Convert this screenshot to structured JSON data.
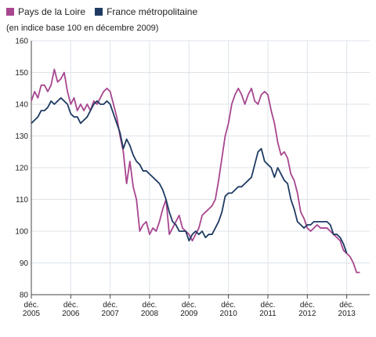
{
  "chart_data": {
    "type": "line",
    "subtitle": "(en indice base 100 en décembre 2009)",
    "ylim": [
      80,
      160
    ],
    "yticks": [
      80,
      90,
      100,
      110,
      120,
      130,
      140,
      150,
      160
    ],
    "grid": true,
    "legend_position": "top-left",
    "xticks": [
      {
        "month": 0,
        "line1": "déc.",
        "line2": "2005"
      },
      {
        "month": 12,
        "line1": "déc.",
        "line2": "2006"
      },
      {
        "month": 24,
        "line1": "déc.",
        "line2": "2007"
      },
      {
        "month": 36,
        "line1": "déc.",
        "line2": "2008"
      },
      {
        "month": 48,
        "line1": "déc.",
        "line2": "2009"
      },
      {
        "month": 60,
        "line1": "déc.",
        "line2": "2010"
      },
      {
        "month": 72,
        "line1": "déc.",
        "line2": "2011"
      },
      {
        "month": 84,
        "line1": "déc.",
        "line2": "2012"
      },
      {
        "month": 96,
        "line1": "déc.",
        "line2": "2013"
      }
    ],
    "xlim": [
      0,
      103
    ],
    "series": [
      {
        "name": "Pays de la Loire",
        "color": "#a8468f",
        "points": [
          [
            0,
            141
          ],
          [
            1,
            144
          ],
          [
            2,
            142
          ],
          [
            3,
            146
          ],
          [
            4,
            146
          ],
          [
            5,
            144
          ],
          [
            6,
            146
          ],
          [
            7,
            151
          ],
          [
            8,
            147
          ],
          [
            9,
            148
          ],
          [
            10,
            150
          ],
          [
            11,
            144
          ],
          [
            12,
            140
          ],
          [
            13,
            142
          ],
          [
            14,
            138
          ],
          [
            15,
            140
          ],
          [
            16,
            138
          ],
          [
            17,
            140
          ],
          [
            18,
            138
          ],
          [
            19,
            141
          ],
          [
            20,
            140
          ],
          [
            21,
            142
          ],
          [
            22,
            144
          ],
          [
            23,
            145
          ],
          [
            24,
            144
          ],
          [
            25,
            140
          ],
          [
            26,
            136
          ],
          [
            27,
            130
          ],
          [
            28,
            125
          ],
          [
            29,
            115
          ],
          [
            30,
            122
          ],
          [
            31,
            114
          ],
          [
            32,
            110
          ],
          [
            33,
            100
          ],
          [
            34,
            102
          ],
          [
            35,
            103
          ],
          [
            36,
            99
          ],
          [
            37,
            101
          ],
          [
            38,
            100
          ],
          [
            39,
            103
          ],
          [
            40,
            107
          ],
          [
            41,
            110
          ],
          [
            42,
            99
          ],
          [
            43,
            101
          ],
          [
            44,
            103
          ],
          [
            45,
            105
          ],
          [
            46,
            101
          ],
          [
            47,
            100
          ],
          [
            48,
            99
          ],
          [
            49,
            97
          ],
          [
            50,
            99
          ],
          [
            51,
            101
          ],
          [
            52,
            105
          ],
          [
            53,
            106
          ],
          [
            54,
            107
          ],
          [
            55,
            108
          ],
          [
            56,
            110
          ],
          [
            57,
            116
          ],
          [
            58,
            123
          ],
          [
            59,
            130
          ],
          [
            60,
            134
          ],
          [
            61,
            140
          ],
          [
            62,
            143
          ],
          [
            63,
            145
          ],
          [
            64,
            143
          ],
          [
            65,
            140
          ],
          [
            66,
            143
          ],
          [
            67,
            145
          ],
          [
            68,
            141
          ],
          [
            69,
            140
          ],
          [
            70,
            143
          ],
          [
            71,
            144
          ],
          [
            72,
            143
          ],
          [
            73,
            138
          ],
          [
            74,
            134
          ],
          [
            75,
            128
          ],
          [
            76,
            124
          ],
          [
            77,
            125
          ],
          [
            78,
            123
          ],
          [
            79,
            118
          ],
          [
            80,
            116
          ],
          [
            81,
            112
          ],
          [
            82,
            106
          ],
          [
            83,
            104
          ],
          [
            84,
            101
          ],
          [
            85,
            100
          ],
          [
            86,
            101
          ],
          [
            87,
            102
          ],
          [
            88,
            101
          ],
          [
            89,
            101
          ],
          [
            90,
            101
          ],
          [
            91,
            100
          ],
          [
            92,
            99
          ],
          [
            93,
            98
          ],
          [
            94,
            97
          ],
          [
            95,
            94
          ],
          [
            96,
            93
          ],
          [
            97,
            92
          ],
          [
            98,
            90
          ],
          [
            99,
            87
          ],
          [
            100,
            87
          ]
        ]
      },
      {
        "name": "France métropolitaine",
        "color": "#1f3b63",
        "points": [
          [
            0,
            134
          ],
          [
            1,
            135
          ],
          [
            2,
            136
          ],
          [
            3,
            138
          ],
          [
            4,
            138
          ],
          [
            5,
            139
          ],
          [
            6,
            141
          ],
          [
            7,
            140
          ],
          [
            8,
            141
          ],
          [
            9,
            142
          ],
          [
            10,
            141
          ],
          [
            11,
            140
          ],
          [
            12,
            137
          ],
          [
            13,
            136
          ],
          [
            14,
            136
          ],
          [
            15,
            134
          ],
          [
            16,
            135
          ],
          [
            17,
            136
          ],
          [
            18,
            138
          ],
          [
            19,
            140
          ],
          [
            20,
            141
          ],
          [
            21,
            140
          ],
          [
            22,
            140
          ],
          [
            23,
            141
          ],
          [
            24,
            140
          ],
          [
            25,
            137
          ],
          [
            26,
            134
          ],
          [
            27,
            131
          ],
          [
            28,
            126
          ],
          [
            29,
            129
          ],
          [
            30,
            127
          ],
          [
            31,
            124
          ],
          [
            32,
            122
          ],
          [
            33,
            121
          ],
          [
            34,
            119
          ],
          [
            35,
            119
          ],
          [
            36,
            118
          ],
          [
            37,
            117
          ],
          [
            38,
            116
          ],
          [
            39,
            115
          ],
          [
            40,
            113
          ],
          [
            41,
            110
          ],
          [
            42,
            106
          ],
          [
            43,
            103
          ],
          [
            44,
            102
          ],
          [
            45,
            100
          ],
          [
            46,
            100
          ],
          [
            47,
            100
          ],
          [
            48,
            97
          ],
          [
            49,
            99
          ],
          [
            50,
            100
          ],
          [
            51,
            99
          ],
          [
            52,
            100
          ],
          [
            53,
            98
          ],
          [
            54,
            99
          ],
          [
            55,
            99
          ],
          [
            56,
            101
          ],
          [
            57,
            103
          ],
          [
            58,
            106
          ],
          [
            59,
            111
          ],
          [
            60,
            112
          ],
          [
            61,
            112
          ],
          [
            62,
            113
          ],
          [
            63,
            114
          ],
          [
            64,
            114
          ],
          [
            65,
            115
          ],
          [
            66,
            116
          ],
          [
            67,
            117
          ],
          [
            68,
            121
          ],
          [
            69,
            125
          ],
          [
            70,
            126
          ],
          [
            71,
            122
          ],
          [
            72,
            121
          ],
          [
            73,
            120
          ],
          [
            74,
            117
          ],
          [
            75,
            120
          ],
          [
            76,
            118
          ],
          [
            77,
            116
          ],
          [
            78,
            115
          ],
          [
            79,
            110
          ],
          [
            80,
            107
          ],
          [
            81,
            103
          ],
          [
            82,
            102
          ],
          [
            83,
            101
          ],
          [
            84,
            102
          ],
          [
            85,
            102
          ],
          [
            86,
            103
          ],
          [
            87,
            103
          ],
          [
            88,
            103
          ],
          [
            89,
            103
          ],
          [
            90,
            103
          ],
          [
            91,
            102
          ],
          [
            92,
            99
          ],
          [
            93,
            99
          ],
          [
            94,
            98
          ],
          [
            95,
            96
          ],
          [
            96,
            93
          ]
        ]
      }
    ]
  }
}
